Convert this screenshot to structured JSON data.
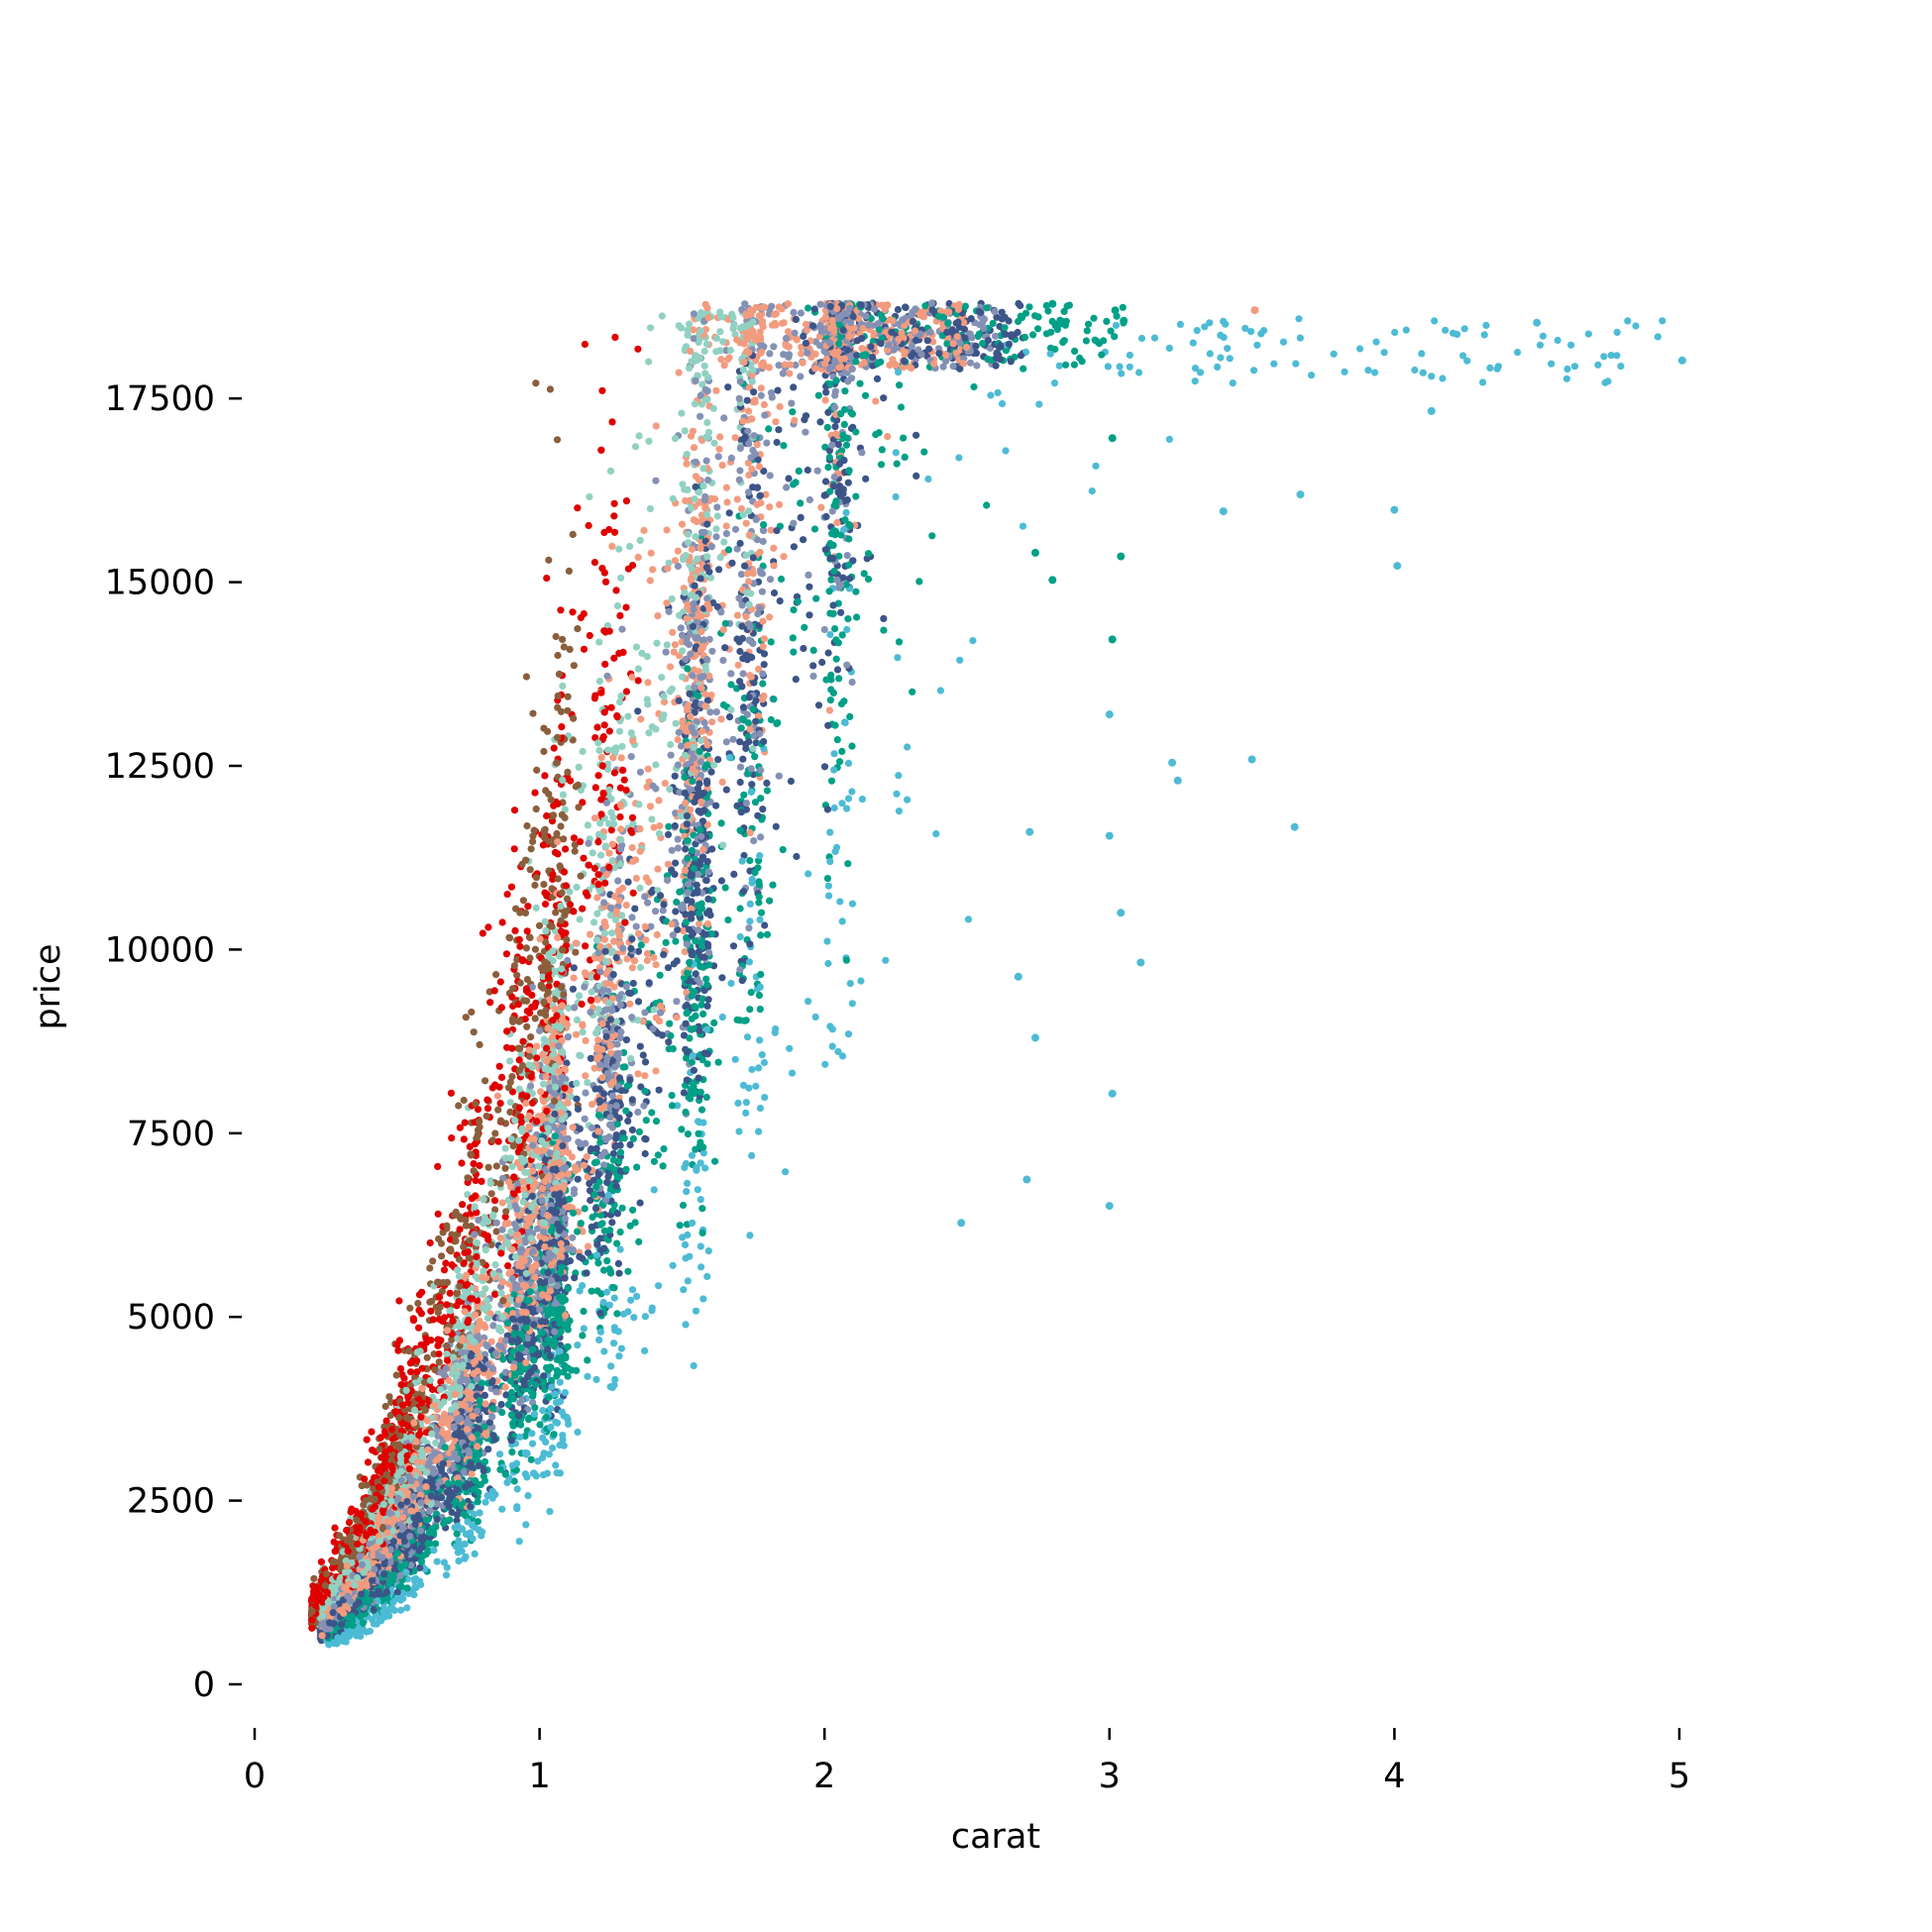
{
  "chart_data": {
    "type": "scatter",
    "title": "",
    "xlabel": "carat",
    "ylabel": "price",
    "xlim": [
      0,
      5.75
    ],
    "ylim": [
      -850,
      19700
    ],
    "xticks": [
      0,
      1,
      2,
      3,
      4,
      5
    ],
    "yticks": [
      0,
      2500,
      5000,
      7500,
      10000,
      12500,
      15000,
      17500
    ],
    "xtick_labels": [
      "0",
      "1",
      "2",
      "3",
      "4",
      "5"
    ],
    "ytick_labels": [
      "0",
      "2500",
      "5000",
      "7500",
      "10000",
      "12500",
      "15000",
      "17500"
    ],
    "grid": false,
    "legend": "none",
    "point_count_approx": 54000,
    "series": [
      {
        "color": "#8b5e3c",
        "k": 9500,
        "exp": 1.7,
        "xmin": 0.2,
        "xmax": 1.15,
        "pmax": 18600,
        "weight": 0.06
      },
      {
        "color": "#e00000",
        "k": 9000,
        "exp": 1.65,
        "xmin": 0.2,
        "xmax": 1.35,
        "pmax": 18700,
        "weight": 0.08
      },
      {
        "color": "#91d1c2",
        "k": 7300,
        "exp": 1.72,
        "xmin": 0.23,
        "xmax": 1.75,
        "pmax": 18700,
        "weight": 0.12
      },
      {
        "color": "#f39b7f",
        "k": 6300,
        "exp": 1.78,
        "xmin": 0.23,
        "xmax": 2.5,
        "pmax": 18800,
        "weight": 0.2
      },
      {
        "color": "#8491b4",
        "k": 5800,
        "exp": 1.78,
        "xmin": 0.23,
        "xmax": 2.6,
        "pmax": 18800,
        "weight": 0.17
      },
      {
        "color": "#3c5488",
        "k": 5000,
        "exp": 1.8,
        "xmin": 0.23,
        "xmax": 2.7,
        "pmax": 18800,
        "weight": 0.18
      },
      {
        "color": "#00a087",
        "k": 4300,
        "exp": 1.82,
        "xmin": 0.25,
        "xmax": 3.05,
        "pmax": 18800,
        "weight": 0.14
      },
      {
        "color": "#4dbbd5",
        "k": 3000,
        "exp": 1.82,
        "xmin": 0.25,
        "xmax": 5.01,
        "pmax": 18600,
        "weight": 0.05
      }
    ],
    "outliers": [
      {
        "x": 5.01,
        "y": 18018,
        "color": "#4dbbd5"
      },
      {
        "x": 4.5,
        "y": 18531,
        "color": "#4dbbd5"
      },
      {
        "x": 4.13,
        "y": 17329,
        "color": "#4dbbd5"
      },
      {
        "x": 4.01,
        "y": 15223,
        "color": "#4dbbd5"
      },
      {
        "x": 4.0,
        "y": 15984,
        "color": "#4dbbd5"
      },
      {
        "x": 3.67,
        "y": 16193,
        "color": "#4dbbd5"
      },
      {
        "x": 3.65,
        "y": 11668,
        "color": "#4dbbd5"
      },
      {
        "x": 3.5,
        "y": 12587,
        "color": "#4dbbd5"
      },
      {
        "x": 3.4,
        "y": 15964,
        "color": "#4dbbd5"
      },
      {
        "x": 3.24,
        "y": 12300,
        "color": "#4dbbd5"
      },
      {
        "x": 3.22,
        "y": 12545,
        "color": "#4dbbd5"
      },
      {
        "x": 3.11,
        "y": 9823,
        "color": "#4dbbd5"
      },
      {
        "x": 3.04,
        "y": 10500,
        "color": "#4dbbd5"
      },
      {
        "x": 3.01,
        "y": 8040,
        "color": "#4dbbd5"
      },
      {
        "x": 3.0,
        "y": 6512,
        "color": "#4dbbd5"
      },
      {
        "x": 3.0,
        "y": 11548,
        "color": "#4dbbd5"
      },
      {
        "x": 3.0,
        "y": 13200,
        "color": "#4dbbd5"
      },
      {
        "x": 3.51,
        "y": 18701,
        "color": "#f39b7f"
      },
      {
        "x": 3.05,
        "y": 18559,
        "color": "#00a087"
      },
      {
        "x": 3.02,
        "y": 18700,
        "color": "#00a087"
      },
      {
        "x": 3.01,
        "y": 16960,
        "color": "#00a087"
      },
      {
        "x": 3.04,
        "y": 15350,
        "color": "#00a087"
      },
      {
        "x": 3.01,
        "y": 14220,
        "color": "#00a087"
      },
      {
        "x": 2.8,
        "y": 18788,
        "color": "#00a087"
      },
      {
        "x": 2.74,
        "y": 15400,
        "color": "#00a087"
      },
      {
        "x": 2.8,
        "y": 15030,
        "color": "#00a087"
      },
      {
        "x": 2.72,
        "y": 11600,
        "color": "#4dbbd5"
      },
      {
        "x": 2.71,
        "y": 6870,
        "color": "#4dbbd5"
      },
      {
        "x": 2.68,
        "y": 9630,
        "color": "#4dbbd5"
      },
      {
        "x": 2.74,
        "y": 8800,
        "color": "#4dbbd5"
      },
      {
        "x": 2.48,
        "y": 6280,
        "color": "#4dbbd5"
      }
    ]
  }
}
